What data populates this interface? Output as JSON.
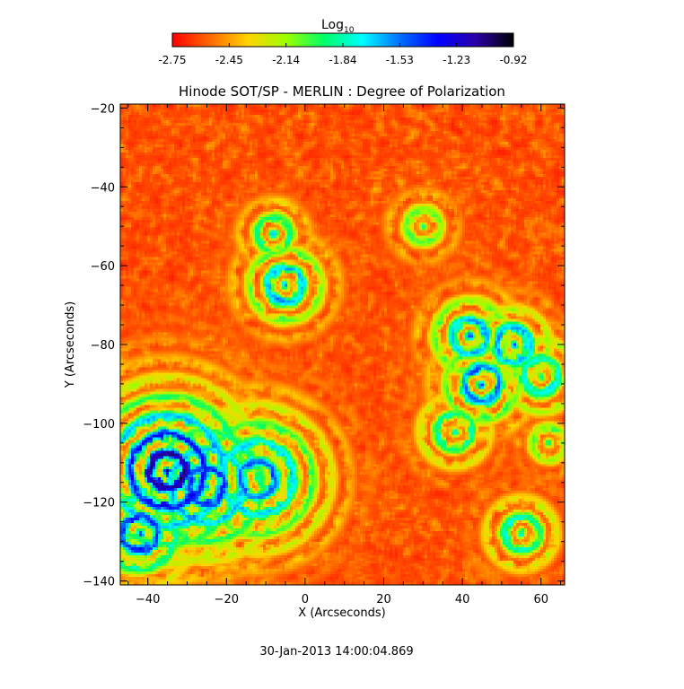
{
  "chart_data": {
    "type": "heatmap",
    "title": "Hinode SOT/SP - MERLIN : Degree of Polarization",
    "xlabel": "X (Arcseconds)",
    "ylabel": "Y (Arcseconds)",
    "xlim": [
      -47,
      66
    ],
    "ylim": [
      -141,
      -19
    ],
    "x_ticks": [
      -40,
      -20,
      0,
      20,
      40,
      60
    ],
    "y_ticks": [
      -20,
      -40,
      -60,
      -80,
      -100,
      -120,
      -140
    ],
    "colorbar": {
      "label_base": "Log",
      "label_sub": "10",
      "ticks": [
        "-2.75",
        "-2.45",
        "-2.14",
        "-1.84",
        "-1.53",
        "-1.23",
        "-0.92"
      ],
      "range": [
        -2.75,
        -0.92
      ],
      "colors": [
        "#ff0000",
        "#ff6a00",
        "#ffd400",
        "#9dff00",
        "#00ff66",
        "#00ffff",
        "#0070ff",
        "#0000ff",
        "#2a00a8",
        "#000000"
      ]
    },
    "high_polarization_regions": [
      {
        "x": -35,
        "y": -112,
        "radius": 14,
        "peak": -1.0
      },
      {
        "x": -25,
        "y": -116,
        "radius": 12,
        "peak": -1.3
      },
      {
        "x": -12,
        "y": -114,
        "radius": 12,
        "peak": -1.4
      },
      {
        "x": -42,
        "y": -128,
        "radius": 8,
        "peak": -1.2
      },
      {
        "x": -5,
        "y": -65,
        "radius": 7,
        "peak": -1.4
      },
      {
        "x": -8,
        "y": -52,
        "radius": 5,
        "peak": -1.6
      },
      {
        "x": 42,
        "y": -78,
        "radius": 7,
        "peak": -1.4
      },
      {
        "x": 45,
        "y": -90,
        "radius": 7,
        "peak": -1.3
      },
      {
        "x": 53,
        "y": -80,
        "radius": 6,
        "peak": -1.3
      },
      {
        "x": 60,
        "y": -88,
        "radius": 7,
        "peak": -1.6
      },
      {
        "x": 38,
        "y": -102,
        "radius": 6,
        "peak": -1.6
      },
      {
        "x": 55,
        "y": -128,
        "radius": 6,
        "peak": -1.6
      },
      {
        "x": 30,
        "y": -50,
        "radius": 5,
        "peak": -1.8
      },
      {
        "x": 62,
        "y": -105,
        "radius": 4,
        "peak": -1.7
      }
    ],
    "background_level": -2.6
  },
  "footer": {
    "timestamp": "30-Jan-2013 14:00:04.869"
  }
}
